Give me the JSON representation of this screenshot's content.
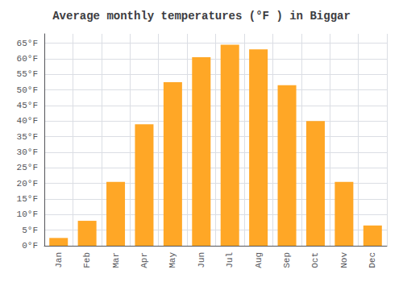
{
  "chart_data": {
    "type": "bar",
    "title": "Average monthly temperatures (°F ) in Biggar",
    "categories": [
      "Jan",
      "Feb",
      "Mar",
      "Apr",
      "May",
      "Jun",
      "Jul",
      "Aug",
      "Sep",
      "Oct",
      "Nov",
      "Dec"
    ],
    "values": [
      2.5,
      8.0,
      20.5,
      39.0,
      52.5,
      60.5,
      64.5,
      63.0,
      51.5,
      40.0,
      20.5,
      6.5
    ],
    "color": "#FFA726",
    "ylim": [
      0,
      68
    ],
    "yticks": [
      {
        "value": 0,
        "label": "0°F"
      },
      {
        "value": 5,
        "label": "5°F"
      },
      {
        "value": 10,
        "label": "10°F"
      },
      {
        "value": 15,
        "label": "15°F"
      },
      {
        "value": 20,
        "label": "20°F"
      },
      {
        "value": 25,
        "label": "25°F"
      },
      {
        "value": 30,
        "label": "30°F"
      },
      {
        "value": 35,
        "label": "35°F"
      },
      {
        "value": 40,
        "label": "40°F"
      },
      {
        "value": 45,
        "label": "45°F"
      },
      {
        "value": 50,
        "label": "50°F"
      },
      {
        "value": 55,
        "label": "55°F"
      },
      {
        "value": 60,
        "label": "60°F"
      },
      {
        "value": 65,
        "label": "65°F"
      }
    ],
    "grid": true
  }
}
